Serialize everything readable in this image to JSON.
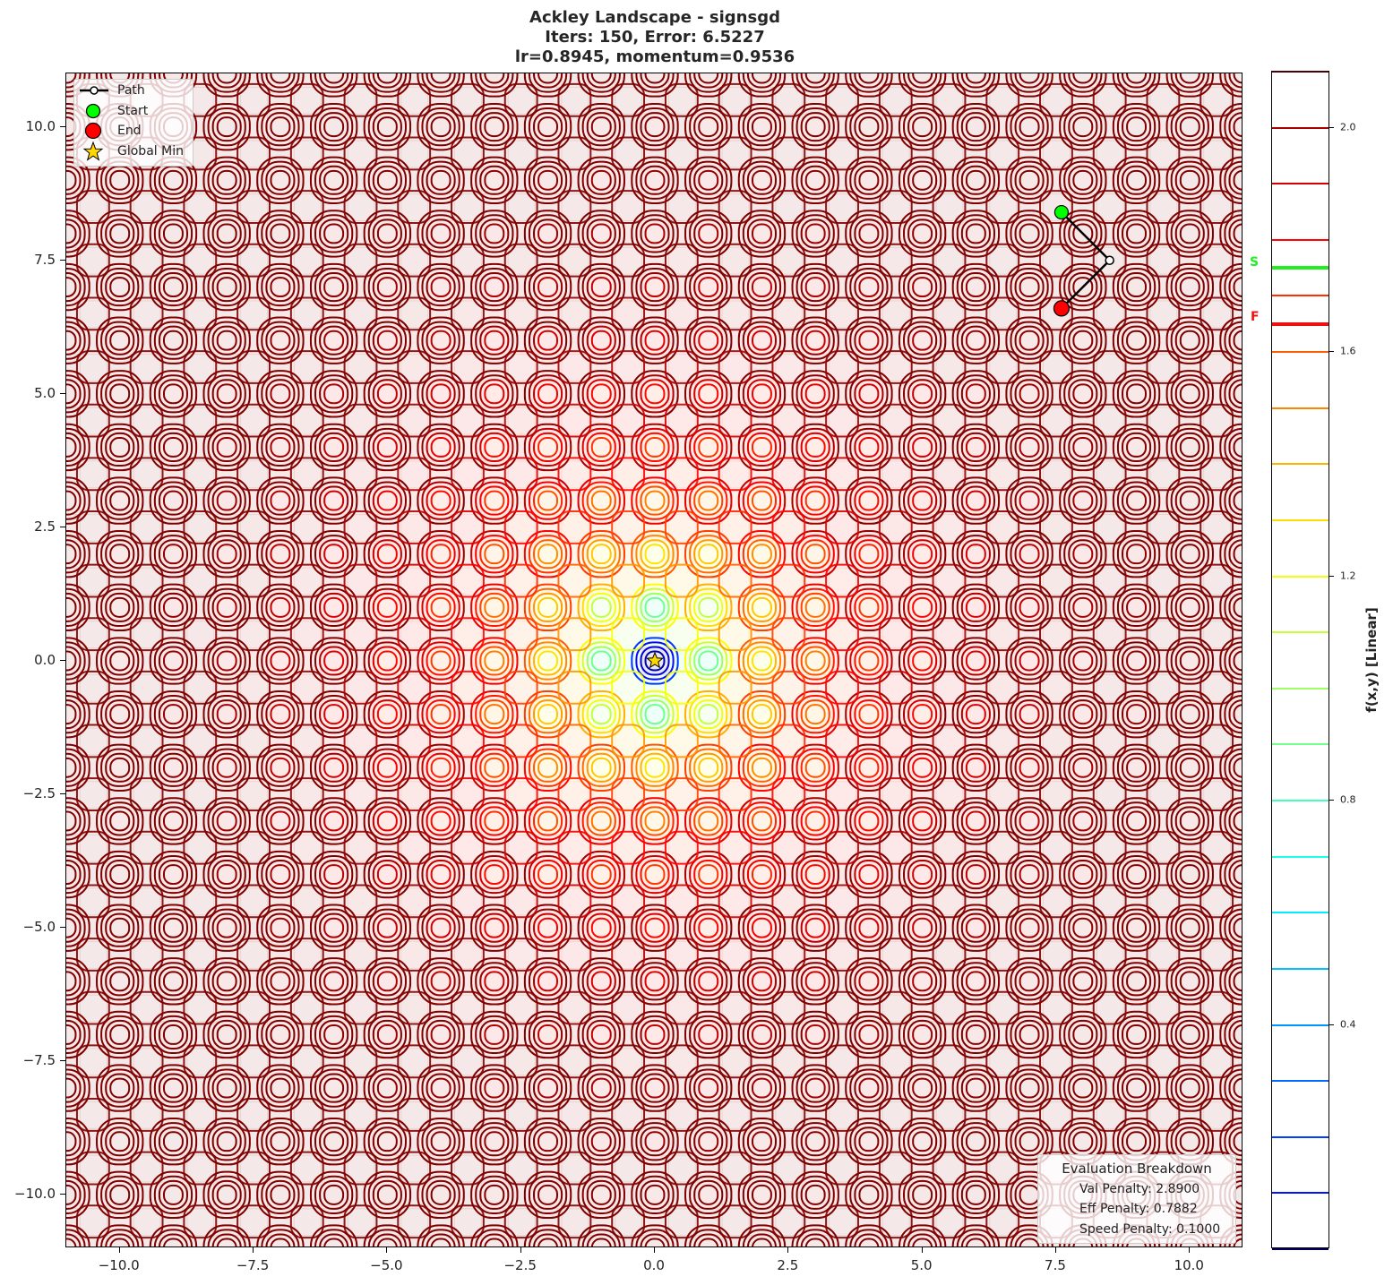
{
  "title": {
    "line1": "Ackley Landscape - signsgd",
    "line2": "Iters: 150, Error: 6.5227",
    "line3": "lr=0.8945, momentum=0.9536"
  },
  "axes": {
    "x_ticks": [
      "−10.0",
      "−7.5",
      "−5.0",
      "−2.5",
      "0.0",
      "2.5",
      "5.0",
      "7.5",
      "10.0"
    ],
    "y_ticks": [
      "10.0",
      "7.5",
      "5.0",
      "2.5",
      "0.0",
      "−2.5",
      "−5.0",
      "−7.5",
      "−10.0"
    ]
  },
  "legend": {
    "items": [
      {
        "label": "Path",
        "icon": "line-with-open-circle-icon"
      },
      {
        "label": "Start",
        "icon": "green-circle-icon",
        "color": "#00ff00"
      },
      {
        "label": "End",
        "icon": "red-circle-icon",
        "color": "#ff0000"
      },
      {
        "label": "Global Min",
        "icon": "gold-star-icon",
        "color": "#ffd700"
      }
    ]
  },
  "evaluation": {
    "title": "Evaluation Breakdown",
    "val_penalty": "Val Penalty: 2.8900",
    "eff_penalty": "Eff Penalty: 0.7882",
    "speed_penalty": "Speed Penalty: 0.1000"
  },
  "colorbar": {
    "label": "f(x,y) [Linear]",
    "ticks": [
      "2.0",
      "1.6",
      "1.2",
      "0.8",
      "0.4"
    ],
    "start_marker": "S",
    "final_marker": "F",
    "start_color": "#22ee22",
    "final_color": "#ee1111"
  },
  "chart_data": {
    "type": "contour",
    "title": "Ackley Landscape - signsgd\nIters: 150, Error: 6.5227\nlr=0.8945, momentum=0.9536",
    "xlabel": "",
    "ylabel": "",
    "xlim": [
      -11,
      11
    ],
    "ylim": [
      -11,
      11
    ],
    "x_ticks": [
      -10.0,
      -7.5,
      -5.0,
      -2.5,
      0.0,
      2.5,
      5.0,
      7.5,
      10.0
    ],
    "y_ticks": [
      -10.0,
      -7.5,
      -5.0,
      -2.5,
      0.0,
      2.5,
      5.0,
      7.5,
      10.0
    ],
    "function": "Ackley",
    "colormap": "jet (contour lines)",
    "colorbar": {
      "label": "f(x,y) [Linear]",
      "range": [
        0.0,
        2.1
      ],
      "ticks": [
        0.4,
        0.8,
        1.2,
        1.6,
        2.0
      ],
      "n_levels": 21
    },
    "path": {
      "x": [
        7.6,
        8.5,
        7.6
      ],
      "y": [
        8.4,
        7.5,
        6.6
      ]
    },
    "start": {
      "x": 7.6,
      "y": 8.4
    },
    "end": {
      "x": 7.6,
      "y": 6.6
    },
    "global_min": {
      "x": 0.0,
      "y": 0.0
    },
    "colorbar_markers": {
      "S": 1.75,
      "F": 1.65
    },
    "legend": [
      "Path",
      "Start",
      "End",
      "Global Min"
    ],
    "legend_position": "upper left",
    "annotations": {
      "Evaluation Breakdown": {
        "Val Penalty": 2.89,
        "Eff Penalty": 0.7882,
        "Speed Penalty": 0.1
      },
      "Iters": 150,
      "Error": 6.5227,
      "lr": 0.8945,
      "momentum": 0.9536
    }
  }
}
